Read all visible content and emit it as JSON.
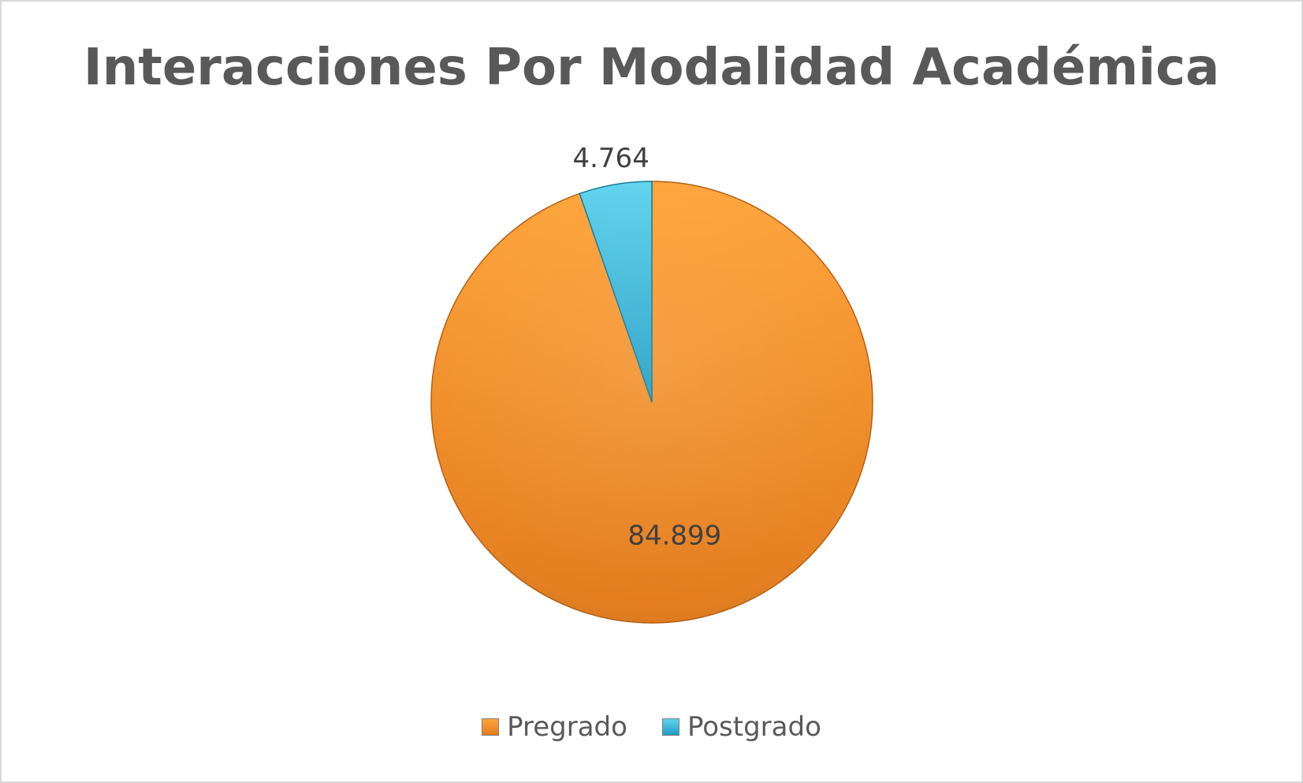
{
  "chart_data": {
    "type": "pie",
    "title": "Interacciones Por Modalidad Académica",
    "categories": [
      "Pregrado",
      "Postgrado"
    ],
    "values": [
      84899,
      4764
    ],
    "data_labels": [
      "84.899",
      "4.764"
    ],
    "colors": [
      "#f7941d",
      "#2bb3d6"
    ],
    "legend_position": "bottom"
  }
}
